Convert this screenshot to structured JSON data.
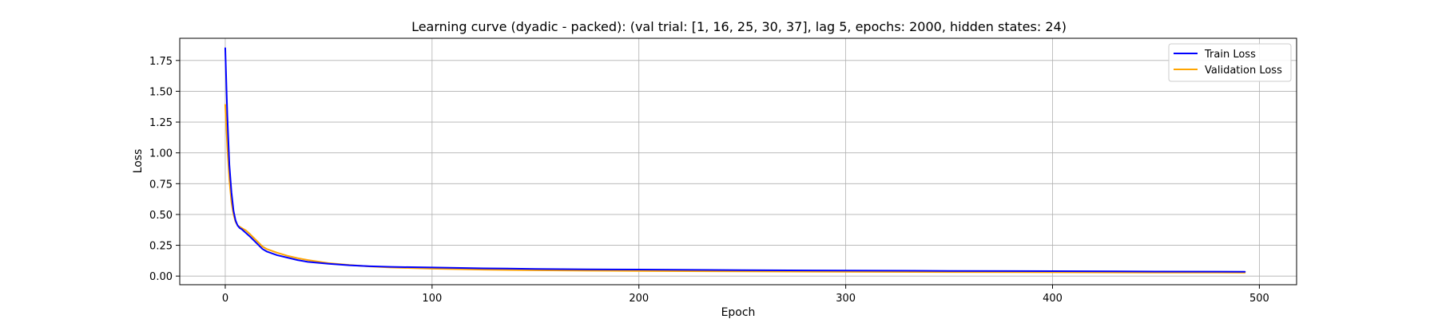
{
  "chart_data": {
    "type": "line",
    "title": "Learning curve (dyadic - packed): (val trial: [1, 16, 25, 30, 37], lag 5, epochs: 2000, hidden states: 24)",
    "xlabel": "Epoch",
    "ylabel": "Loss",
    "xlim": [
      -22,
      518
    ],
    "ylim": [
      -0.07,
      1.93
    ],
    "xticks": [
      0,
      100,
      200,
      300,
      400,
      500
    ],
    "xtick_labels": [
      "0",
      "100",
      "200",
      "300",
      "400",
      "500"
    ],
    "yticks": [
      0.0,
      0.25,
      0.5,
      0.75,
      1.0,
      1.25,
      1.5,
      1.75
    ],
    "ytick_labels": [
      "0.00",
      "0.25",
      "0.50",
      "0.75",
      "1.00",
      "1.25",
      "1.50",
      "1.75"
    ],
    "grid": true,
    "legend_position": "top-right",
    "series": [
      {
        "name": "Train Loss",
        "color": "#0000ff",
        "x": [
          0,
          1,
          2,
          3,
          4,
          5,
          6,
          7,
          8,
          10,
          12,
          15,
          18,
          20,
          25,
          30,
          35,
          40,
          50,
          60,
          70,
          80,
          90,
          100,
          125,
          150,
          175,
          200,
          250,
          300,
          350,
          400,
          450,
          493
        ],
        "y": [
          1.85,
          1.3,
          0.9,
          0.68,
          0.53,
          0.45,
          0.41,
          0.39,
          0.38,
          0.35,
          0.32,
          0.27,
          0.22,
          0.2,
          0.17,
          0.15,
          0.13,
          0.115,
          0.1,
          0.088,
          0.08,
          0.075,
          0.072,
          0.07,
          0.063,
          0.058,
          0.055,
          0.053,
          0.048,
          0.045,
          0.042,
          0.04,
          0.037,
          0.035
        ]
      },
      {
        "name": "Validation Loss",
        "color": "#ffa500",
        "x": [
          0,
          1,
          2,
          3,
          4,
          5,
          6,
          7,
          8,
          10,
          12,
          15,
          18,
          20,
          25,
          30,
          35,
          40,
          50,
          60,
          70,
          80,
          90,
          100,
          125,
          150,
          175,
          200,
          250,
          300,
          350,
          400,
          450,
          493
        ],
        "y": [
          1.39,
          1.05,
          0.78,
          0.6,
          0.5,
          0.44,
          0.41,
          0.4,
          0.39,
          0.37,
          0.34,
          0.29,
          0.24,
          0.22,
          0.19,
          0.165,
          0.145,
          0.13,
          0.105,
          0.09,
          0.078,
          0.07,
          0.065,
          0.06,
          0.052,
          0.047,
          0.044,
          0.042,
          0.038,
          0.035,
          0.033,
          0.031,
          0.029,
          0.028
        ]
      }
    ]
  }
}
